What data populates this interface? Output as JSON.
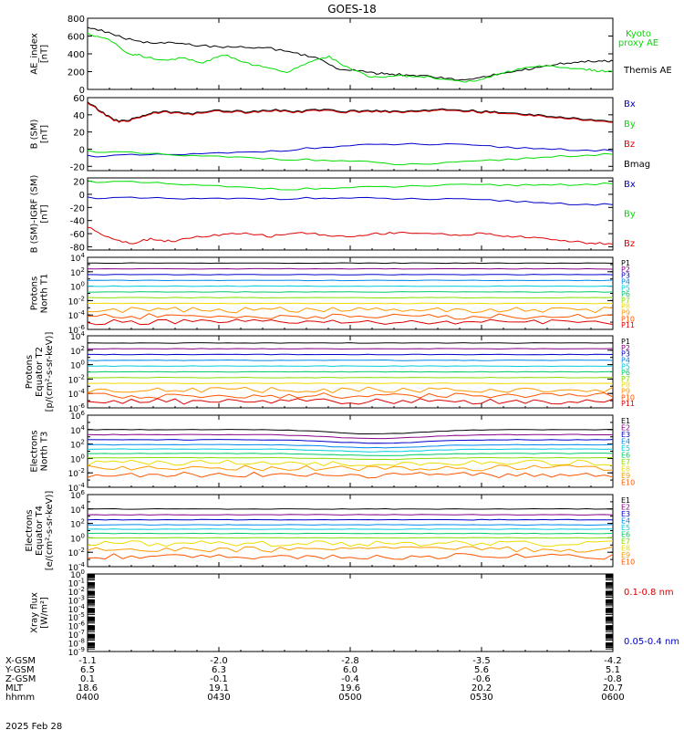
{
  "title": "GOES-18",
  "date_label": "2025 Feb 28",
  "colors": {
    "black": "#000000",
    "green": "#00dd00",
    "blue": "#0000cc",
    "red": "#dd0000",
    "P": [
      "#000000",
      "#880088",
      "#0000cc",
      "#0088ee",
      "#00ccdd",
      "#00cc66",
      "#88dd00",
      "#eedd00",
      "#ff9900",
      "#ff5500",
      "#dd0000"
    ],
    "E": [
      "#000000",
      "#880088",
      "#0000cc",
      "#0088ee",
      "#00ccdd",
      "#00cc66",
      "#88dd00",
      "#eedd00",
      "#ff9900",
      "#ff5500"
    ]
  },
  "axis_table": {
    "labels": [
      "X-GSM",
      "Y-GSM",
      "Z-GSM",
      "MLT",
      "hhmm"
    ],
    "rows": [
      [
        "-1.1",
        "-2.0",
        "-2.8",
        "-3.5",
        "-4.2"
      ],
      [
        "6.5",
        "6.3",
        "6.0",
        "5.6",
        "5.1"
      ],
      [
        "0.1",
        "-0.1",
        "-0.4",
        "-0.6",
        "-0.8"
      ],
      [
        "18.6",
        "19.1",
        "19.6",
        "20.2",
        "20.7"
      ],
      [
        "0400",
        "0430",
        "0500",
        "0530",
        "0600"
      ]
    ]
  },
  "chart_data": [
    {
      "type": "line",
      "ylabel": [
        "AE_index",
        "[nT]"
      ],
      "ylim": [
        0,
        800
      ],
      "yticks": [
        "0",
        "200",
        "400",
        "600",
        "800"
      ],
      "legend": [
        {
          "text": "Kyoto",
          "color": "green"
        },
        {
          "text": "proxy AE",
          "color": "green"
        },
        {
          "text": "Themis AE",
          "color": "black"
        }
      ],
      "series": [
        {
          "name": "Themis AE",
          "color": "black",
          "x": [
            0,
            0.04,
            0.08,
            0.12,
            0.16,
            0.2,
            0.25,
            0.3,
            0.35,
            0.4,
            0.44,
            0.48,
            0.52,
            0.55,
            0.58,
            0.62,
            0.66,
            0.7,
            0.74,
            0.78,
            0.82,
            0.86,
            0.9,
            0.94,
            0.98,
            1.0
          ],
          "values": [
            700,
            640,
            560,
            520,
            520,
            500,
            480,
            470,
            460,
            400,
            350,
            220,
            210,
            180,
            170,
            160,
            140,
            110,
            130,
            170,
            210,
            250,
            290,
            310,
            320,
            320
          ]
        },
        {
          "name": "Kyoto proxy AE",
          "color": "green",
          "x": [
            0,
            0.04,
            0.08,
            0.1,
            0.14,
            0.18,
            0.22,
            0.26,
            0.3,
            0.34,
            0.38,
            0.42,
            0.46,
            0.5,
            0.54,
            0.58,
            0.62,
            0.66,
            0.7,
            0.74,
            0.78,
            0.82,
            0.86,
            0.9,
            0.94,
            0.97,
            1.0
          ],
          "values": [
            620,
            560,
            400,
            380,
            330,
            350,
            300,
            390,
            300,
            240,
            200,
            300,
            370,
            230,
            140,
            150,
            150,
            130,
            90,
            90,
            170,
            230,
            260,
            250,
            230,
            210,
            200
          ]
        }
      ]
    },
    {
      "type": "line",
      "ylabel": [
        "B (SM)",
        "[nT]"
      ],
      "ylim": [
        -25,
        60
      ],
      "yticks": [
        "-20",
        "0",
        "20",
        "40",
        "60"
      ],
      "legend": [
        {
          "text": "Bx",
          "color": "blue"
        },
        {
          "text": "By",
          "color": "green"
        },
        {
          "text": "Bz",
          "color": "red"
        },
        {
          "text": "Bmag",
          "color": "black"
        }
      ],
      "series": [
        {
          "name": "Bmag",
          "color": "black",
          "x": [
            0,
            0.03,
            0.06,
            0.09,
            0.12,
            0.15,
            0.2,
            0.25,
            0.3,
            0.35,
            0.4,
            0.45,
            0.5,
            0.55,
            0.6,
            0.65,
            0.7,
            0.75,
            0.8,
            0.85,
            0.9,
            0.95,
            1.0
          ],
          "values": [
            55,
            42,
            32,
            36,
            42,
            44,
            42,
            45,
            44,
            46,
            44,
            46,
            44,
            45,
            44,
            46,
            46,
            44,
            42,
            40,
            38,
            34,
            32
          ]
        },
        {
          "name": "Bz",
          "color": "red",
          "x": [
            0,
            0.03,
            0.06,
            0.09,
            0.12,
            0.15,
            0.2,
            0.25,
            0.3,
            0.35,
            0.4,
            0.45,
            0.5,
            0.55,
            0.6,
            0.65,
            0.7,
            0.75,
            0.8,
            0.85,
            0.9,
            0.95,
            1.0
          ],
          "values": [
            54,
            41,
            31,
            35,
            41,
            43,
            41,
            44,
            43,
            45,
            43,
            45,
            43,
            44,
            43,
            45,
            45,
            43,
            41,
            39,
            37,
            33,
            31
          ]
        },
        {
          "name": "Bx",
          "color": "blue",
          "x": [
            0,
            0.1,
            0.2,
            0.3,
            0.4,
            0.5,
            0.6,
            0.7,
            0.8,
            0.9,
            1.0
          ],
          "values": [
            -8,
            -7,
            -6,
            -4,
            0,
            4,
            6,
            5,
            2,
            0,
            -2
          ]
        },
        {
          "name": "By",
          "color": "green",
          "x": [
            0,
            0.1,
            0.2,
            0.3,
            0.4,
            0.5,
            0.6,
            0.7,
            0.8,
            0.9,
            1.0
          ],
          "values": [
            -2,
            -5,
            -8,
            -10,
            -12,
            -14,
            -18,
            -16,
            -12,
            -8,
            -6
          ]
        }
      ]
    },
    {
      "type": "line",
      "ylabel": [
        "B (SM)-IGRF (SM)",
        "[nT]"
      ],
      "ylim": [
        -85,
        25
      ],
      "yticks": [
        "-80",
        "-60",
        "-40",
        "-20",
        "0",
        "20"
      ],
      "legend": [
        {
          "text": "Bx",
          "color": "blue"
        },
        {
          "text": "By",
          "color": "green"
        },
        {
          "text": "Bz",
          "color": "red"
        }
      ],
      "series": [
        {
          "name": "By",
          "color": "green",
          "x": [
            0,
            0.1,
            0.2,
            0.3,
            0.4,
            0.5,
            0.6,
            0.7,
            0.8,
            0.9,
            1.0
          ],
          "values": [
            20,
            18,
            14,
            10,
            8,
            10,
            12,
            14,
            14,
            15,
            16
          ]
        },
        {
          "name": "Bx",
          "color": "blue",
          "x": [
            0,
            0.1,
            0.2,
            0.3,
            0.4,
            0.5,
            0.6,
            0.7,
            0.8,
            0.9,
            1.0
          ],
          "values": [
            -5,
            -6,
            -7,
            -7,
            -6,
            -6,
            -7,
            -8,
            -10,
            -14,
            -16
          ]
        },
        {
          "name": "Bz",
          "color": "red",
          "x": [
            0,
            0.04,
            0.08,
            0.12,
            0.16,
            0.2,
            0.25,
            0.3,
            0.35,
            0.4,
            0.45,
            0.5,
            0.55,
            0.6,
            0.65,
            0.7,
            0.75,
            0.8,
            0.85,
            0.9,
            0.95,
            1.0
          ],
          "values": [
            -50,
            -65,
            -75,
            -68,
            -72,
            -66,
            -62,
            -60,
            -64,
            -58,
            -62,
            -65,
            -60,
            -58,
            -60,
            -62,
            -60,
            -64,
            -66,
            -70,
            -74,
            -76
          ]
        }
      ]
    },
    {
      "type": "line",
      "log_scale": true,
      "ylabel": [
        "Protons",
        "North T1"
      ],
      "ylim_exp": [
        -6,
        4
      ],
      "ytick_exps": [
        -6,
        -4,
        -2,
        0,
        2,
        4
      ],
      "channels": [
        "P1",
        "P2",
        "P3",
        "P4",
        "P5",
        "P6",
        "P7",
        "P8",
        "P9",
        "P10",
        "P11"
      ],
      "levels_exp": [
        3.2,
        2.4,
        1.6,
        0.8,
        0.0,
        -0.8,
        -1.6,
        -2.4,
        -3.3,
        -4.2,
        -5.0
      ]
    },
    {
      "type": "line",
      "log_scale": true,
      "ylabel": [
        "Protons",
        "Equator T2",
        "[p/(cm²-s-sr-keV)]"
      ],
      "ylim_exp": [
        -6,
        4
      ],
      "ytick_exps": [
        -6,
        -4,
        -2,
        0,
        2,
        4
      ],
      "channels": [
        "P1",
        "P2",
        "P3",
        "P4",
        "P5",
        "P6",
        "P7",
        "P8",
        "P9",
        "P10",
        "P11"
      ],
      "levels_exp": [
        3.0,
        2.2,
        1.4,
        0.6,
        -0.2,
        -1.0,
        -1.8,
        -2.6,
        -3.5,
        -4.3,
        -5.1
      ]
    },
    {
      "type": "line",
      "log_scale": true,
      "ylabel": [
        "Electrons",
        "North T3"
      ],
      "ylim_exp": [
        -4,
        6
      ],
      "ytick_exps": [
        -4,
        -2,
        0,
        2,
        4,
        6
      ],
      "channels": [
        "E1",
        "E2",
        "E3",
        "E4",
        "E5",
        "E6",
        "E7",
        "E8",
        "E9",
        "E10"
      ],
      "levels_exp": [
        4.0,
        3.3,
        2.6,
        1.9,
        1.3,
        0.7,
        0.1,
        -0.6,
        -1.3,
        -2.3
      ]
    },
    {
      "type": "line",
      "log_scale": true,
      "ylabel": [
        "Electrons",
        "Equator T4",
        "[e/(cm²-s-sr-keV)]"
      ],
      "ylim_exp": [
        -4,
        6
      ],
      "ytick_exps": [
        -4,
        -2,
        0,
        2,
        4,
        6
      ],
      "channels": [
        "E1",
        "E2",
        "E3",
        "E4",
        "E5",
        "E6",
        "E7",
        "E8",
        "E9",
        "E10"
      ],
      "levels_exp": [
        4.0,
        3.2,
        2.5,
        1.8,
        1.2,
        0.6,
        0.0,
        -0.8,
        -1.6,
        -2.6
      ]
    },
    {
      "type": "line",
      "log_scale": true,
      "ylabel": [
        "Xray flux",
        "[W/m²]"
      ],
      "ylim_exp": [
        -9,
        0
      ],
      "ytick_exps": [
        -9,
        -8,
        -7,
        -6,
        -5,
        -4,
        -3,
        -2,
        -1,
        0
      ],
      "legend": [
        {
          "text": "0.1-0.8 nm",
          "color": "red"
        },
        {
          "text": "0.05-0.4 nm",
          "color": "blue"
        }
      ]
    }
  ]
}
